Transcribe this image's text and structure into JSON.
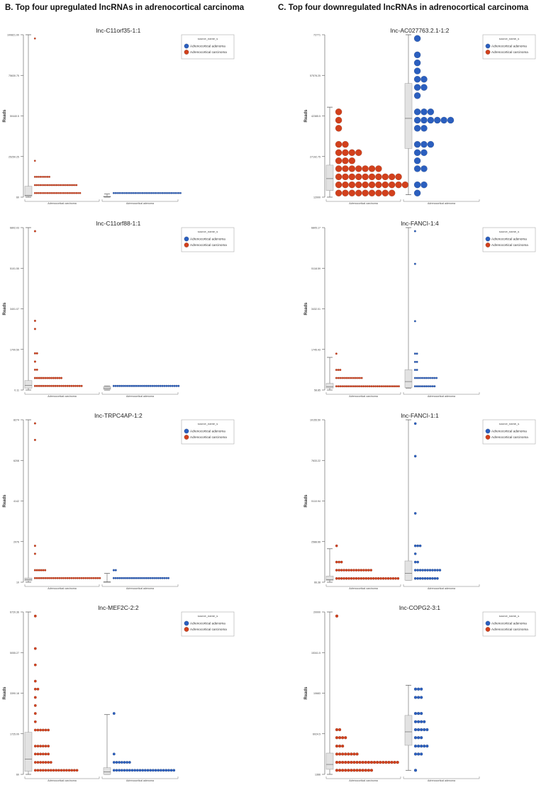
{
  "headers": {
    "left": "B. Top four upregulated lncRNAs in adrenocortical carcinoma",
    "right": "C. Top four downregulated lncRNAs in adrenocortical carcinoma"
  },
  "colors": {
    "adenoma": "#2b5fbf",
    "carcinoma": "#d2401c",
    "box_fill": "#e2e2e2",
    "axis": "#555555"
  },
  "legend": {
    "title": "source_name_s",
    "items": [
      {
        "label": "Adrenocortical adenoma",
        "color_key": "adenoma"
      },
      {
        "label": "Adrenocortical carcinoma",
        "color_key": "carcinoma"
      }
    ]
  },
  "chart_data": [
    {
      "type": "dot-box",
      "title": "lnc-C11orf35-1:1",
      "ylabel": "Reads",
      "ylim": [
        60,
        100821
      ],
      "yticks": [
        "60",
        "25250.25",
        "50440.5",
        "75630.75",
        "100821.00"
      ],
      "groups": [
        {
          "category": "Adrenocortical carcinoma",
          "color_key": "carcinoma",
          "box": {
            "min": 60,
            "q1": 560,
            "median": 1068,
            "q3": 6811,
            "max": 100821
          },
          "dots": [
            {
              "y": 98504,
              "n": 1
            },
            {
              "y": 22630,
              "n": 1
            },
            {
              "y": 12655,
              "n": 9
            },
            {
              "y": 7516,
              "n": 24
            },
            {
              "y": 2579,
              "n": 26
            }
          ]
        },
        {
          "category": "Adrenocortical adenoma",
          "color_key": "adenoma",
          "box": {
            "min": 60,
            "q1": 100,
            "median": 300,
            "q3": 600,
            "max": 2000
          },
          "dots": [
            {
              "y": 2579,
              "n": 38
            }
          ]
        }
      ]
    },
    {
      "type": "dot-box",
      "title": "lnc-C11orf88-1:1",
      "ylabel": "Reads",
      "ylim": [
        0.11,
        6802.03
      ],
      "yticks": [
        "0.11",
        "1700.59",
        "3401.07",
        "5101.55",
        "6802.03"
      ],
      "groups": [
        {
          "category": "Adrenocortical carcinoma",
          "color_key": "carcinoma",
          "box": {
            "min": 0.11,
            "q1": 82,
            "median": 190,
            "q3": 395,
            "max": 6802.03
          },
          "dots": [
            {
              "y": 6652,
              "n": 1
            },
            {
              "y": 2898,
              "n": 1
            },
            {
              "y": 2558,
              "n": 1
            },
            {
              "y": 1537,
              "n": 2
            },
            {
              "y": 1190,
              "n": 1
            },
            {
              "y": 850,
              "n": 2
            },
            {
              "y": 503,
              "n": 14
            },
            {
              "y": 170,
              "n": 24
            }
          ]
        },
        {
          "category": "Adrenocortical adenoma",
          "color_key": "adenoma",
          "box": {
            "min": 0.11,
            "q1": 20,
            "median": 80,
            "q3": 150,
            "max": 170
          },
          "dots": [
            {
              "y": 170,
              "n": 33
            }
          ]
        }
      ]
    },
    {
      "type": "dot-box",
      "title": "lnc-TRPC4AP-1:2",
      "ylabel": "Reads",
      "ylim": [
        10,
        8274
      ],
      "yticks": [
        "10",
        "2076",
        "4142",
        "6208",
        "8274"
      ],
      "groups": [
        {
          "category": "Adrenocortical carcinoma",
          "color_key": "carcinoma",
          "box": {
            "min": 10,
            "q1": 84,
            "median": 150,
            "q3": 225,
            "max": 8274
          },
          "dots": [
            {
              "y": 8092,
              "n": 1
            },
            {
              "y": 7249,
              "n": 1
            },
            {
              "y": 1861,
              "n": 1
            },
            {
              "y": 1456,
              "n": 1
            },
            {
              "y": 621,
              "n": 6
            },
            {
              "y": 217,
              "n": 33
            }
          ]
        },
        {
          "category": "Adrenocortical adenoma",
          "color_key": "adenoma",
          "box": {
            "min": 10,
            "q1": 12,
            "median": 20,
            "q3": 30,
            "max": 456
          },
          "dots": [
            {
              "y": 621,
              "n": 2
            },
            {
              "y": 217,
              "n": 28
            }
          ]
        }
      ]
    },
    {
      "type": "dot-box",
      "title": "lnc-MEF2C-2:2",
      "ylabel": "Reads",
      "ylim": [
        60,
        6720.36
      ],
      "yticks": [
        "60",
        "1725.09",
        "3390.18",
        "5055.27",
        "6720.36"
      ],
      "groups": [
        {
          "category": "Adrenocortical carcinoma",
          "color_key": "carcinoma",
          "box": {
            "min": 60,
            "q1": 187,
            "median": 686,
            "q3": 1785,
            "max": 6720.36
          },
          "dots": [
            {
              "y": 6554,
              "n": 1
            },
            {
              "y": 5222,
              "n": 1
            },
            {
              "y": 4549,
              "n": 1
            },
            {
              "y": 3883,
              "n": 1
            },
            {
              "y": 3557,
              "n": 2
            },
            {
              "y": 3217,
              "n": 1
            },
            {
              "y": 2884,
              "n": 1
            },
            {
              "y": 2558,
              "n": 1
            },
            {
              "y": 2218,
              "n": 1
            },
            {
              "y": 1878,
              "n": 6
            },
            {
              "y": 1219,
              "n": 6
            },
            {
              "y": 893,
              "n": 6
            },
            {
              "y": 553,
              "n": 7
            },
            {
              "y": 227,
              "n": 17
            }
          ]
        },
        {
          "category": "Adrenocortical adenoma",
          "color_key": "adenoma",
          "box": {
            "min": 60,
            "q1": 60,
            "median": 160,
            "q3": 333,
            "max": 2511
          },
          "dots": [
            {
              "y": 2558,
              "n": 1
            },
            {
              "y": 893,
              "n": 1
            },
            {
              "y": 553,
              "n": 7
            },
            {
              "y": 227,
              "n": 24
            }
          ]
        }
      ]
    },
    {
      "type": "dot-box",
      "title": "lnc-AC027763.2.1-1:2",
      "ylabel": "Reads",
      "ylim": [
        12000,
        72771
      ],
      "yticks": [
        "12000",
        "27192.75",
        "42385.5",
        "57578.25",
        "72771"
      ],
      "groups": [
        {
          "category": "Adrenocortical carcinoma",
          "color_key": "carcinoma",
          "box": {
            "min": 12000,
            "q1": 14492,
            "median": 18928,
            "q3": 23972,
            "max": 45667
          },
          "dots": [
            {
              "y": 43905,
              "n": 1
            },
            {
              "y": 40805,
              "n": 1
            },
            {
              "y": 37767,
              "n": 1
            },
            {
              "y": 31751,
              "n": 2
            },
            {
              "y": 28651,
              "n": 4
            },
            {
              "y": 25613,
              "n": 3
            },
            {
              "y": 22635,
              "n": 7
            },
            {
              "y": 19596,
              "n": 10
            },
            {
              "y": 16619,
              "n": 11
            },
            {
              "y": 13519,
              "n": 9
            }
          ]
        },
        {
          "category": "Adrenocortical adenoma",
          "color_key": "adenoma",
          "box": {
            "min": 12912,
            "q1": 30231,
            "median": 41474,
            "q3": 54540,
            "max": 72771
          },
          "dots": [
            {
              "y": 71373,
              "n": 1
            },
            {
              "y": 65235,
              "n": 1
            },
            {
              "y": 62258,
              "n": 1
            },
            {
              "y": 59219,
              "n": 1
            },
            {
              "y": 56120,
              "n": 2
            },
            {
              "y": 53081,
              "n": 2
            },
            {
              "y": 49982,
              "n": 1
            },
            {
              "y": 43905,
              "n": 3
            },
            {
              "y": 40805,
              "n": 6
            },
            {
              "y": 37767,
              "n": 2
            },
            {
              "y": 31751,
              "n": 3
            },
            {
              "y": 28651,
              "n": 2
            },
            {
              "y": 25613,
              "n": 1
            },
            {
              "y": 22635,
              "n": 2
            },
            {
              "y": 16619,
              "n": 2
            },
            {
              "y": 13519,
              "n": 1
            }
          ]
        }
      ]
    },
    {
      "type": "dot-box",
      "title": "lnc-FANCI-1:4",
      "ylabel": "Reads",
      "ylim": [
        58.85,
        6805.17
      ],
      "yticks": [
        "58.85",
        "1745.43",
        "3432.01",
        "5118.59",
        "6805.17"
      ],
      "groups": [
        {
          "category": "Adrenocortical carcinoma",
          "color_key": "carcinoma",
          "box": {
            "min": 58.85,
            "q1": 140,
            "median": 199,
            "q3": 335,
            "max": 1415
          },
          "dots": [
            {
              "y": 1570,
              "n": 1
            },
            {
              "y": 895,
              "n": 3
            },
            {
              "y": 558,
              "n": 14
            },
            {
              "y": 214,
              "n": 33
            }
          ]
        },
        {
          "category": "Adrenocortical adenoma",
          "color_key": "adenoma",
          "box": {
            "min": 140,
            "q1": 160,
            "median": 410,
            "q3": 902,
            "max": 6805.17
          },
          "dots": [
            {
              "y": 6657,
              "n": 1
            },
            {
              "y": 5300,
              "n": 1
            },
            {
              "y": 2919,
              "n": 1
            },
            {
              "y": 1570,
              "n": 2
            },
            {
              "y": 1226,
              "n": 2
            },
            {
              "y": 895,
              "n": 2
            },
            {
              "y": 558,
              "n": 12
            },
            {
              "y": 214,
              "n": 11
            }
          ]
        }
      ]
    },
    {
      "type": "dot-box",
      "title": "lnc-FANCI-1:1",
      "ylabel": "Reads",
      "ylim": [
        66.38,
        10155.5
      ],
      "yticks": [
        "66.38",
        "2588.66",
        "5110.94",
        "7633.22",
        "10155.50"
      ],
      "groups": [
        {
          "category": "Adrenocortical carcinoma",
          "color_key": "carcinoma",
          "box": {
            "min": 66.38,
            "q1": 187,
            "median": 217,
            "q3": 450,
            "max": 2145
          },
          "dots": [
            {
              "y": 2326,
              "n": 1
            },
            {
              "y": 1317,
              "n": 3
            },
            {
              "y": 813,
              "n": 15
            },
            {
              "y": 298,
              "n": 26
            }
          ]
        },
        {
          "category": "Adrenocortical adenoma",
          "color_key": "adenoma",
          "box": {
            "min": 187,
            "q1": 187,
            "median": 611,
            "q3": 1388,
            "max": 10155.5
          },
          "dots": [
            {
              "y": 9923,
              "n": 1
            },
            {
              "y": 7895,
              "n": 1
            },
            {
              "y": 4344,
              "n": 1
            },
            {
              "y": 2326,
              "n": 3
            },
            {
              "y": 1832,
              "n": 1
            },
            {
              "y": 1317,
              "n": 2
            },
            {
              "y": 813,
              "n": 11
            },
            {
              "y": 298,
              "n": 10
            }
          ]
        }
      ]
    },
    {
      "type": "dot-box",
      "title": "lnc-COPG2-3:1",
      "ylabel": "Reads",
      "ylim": [
        1366,
        20000
      ],
      "yticks": [
        "1366",
        "6024.5",
        "10683",
        "15341.5",
        "20000"
      ],
      "groups": [
        {
          "category": "Adrenocortical carcinoma",
          "color_key": "carcinoma",
          "box": {
            "min": 1366,
            "q1": 1944,
            "median": 2503,
            "q3": 3807,
            "max": 20000
          },
          "dots": [
            {
              "y": 19534,
              "n": 1
            },
            {
              "y": 6490,
              "n": 2
            },
            {
              "y": 5577,
              "n": 4
            },
            {
              "y": 4608,
              "n": 3
            },
            {
              "y": 3695,
              "n": 8
            },
            {
              "y": 2745,
              "n": 22
            },
            {
              "y": 1832,
              "n": 13
            }
          ]
        },
        {
          "category": "Adrenocortical adenoma",
          "color_key": "adenoma",
          "box": {
            "min": 1832,
            "q1": 4702,
            "median": 6248,
            "q3": 8130,
            "max": 11596
          },
          "dots": [
            {
              "y": 11149,
              "n": 3
            },
            {
              "y": 10198,
              "n": 3
            },
            {
              "y": 8354,
              "n": 3
            },
            {
              "y": 7403,
              "n": 4
            },
            {
              "y": 6490,
              "n": 5
            },
            {
              "y": 5577,
              "n": 3
            },
            {
              "y": 4608,
              "n": 5
            },
            {
              "y": 3695,
              "n": 3
            },
            {
              "y": 1832,
              "n": 1
            }
          ]
        }
      ]
    }
  ]
}
